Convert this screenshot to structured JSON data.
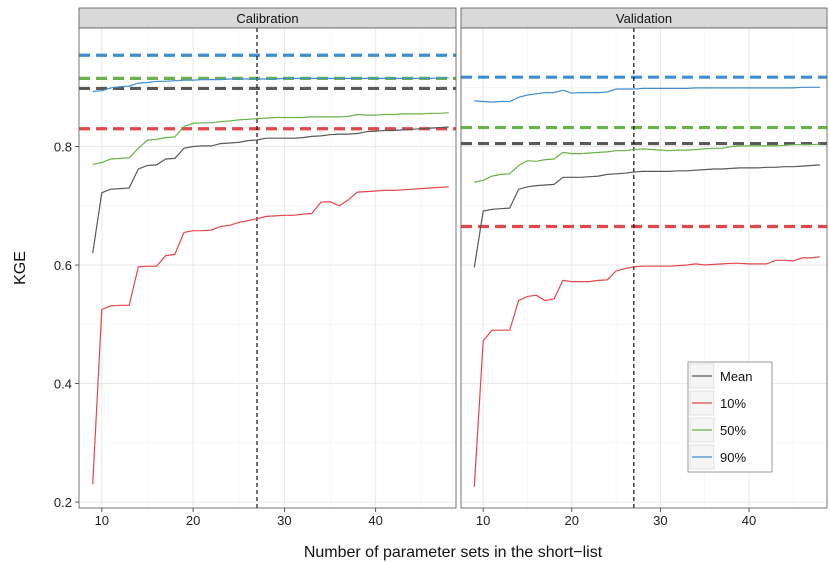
{
  "chart_data": {
    "type": "line",
    "xlabel": "Number of parameter sets in the short−list",
    "ylabel": "KGE",
    "xlim": [
      7.5,
      48.8
    ],
    "ylim": [
      0.19,
      1.0
    ],
    "x_ticks": [
      10,
      20,
      30,
      40
    ],
    "y_ticks": [
      0.2,
      0.4,
      0.6,
      0.8
    ],
    "y_tick_labels": [
      "0.2",
      "0.4",
      "0.6",
      "0.8"
    ],
    "grid": true,
    "legend_position": "bottom-right",
    "legend": [
      {
        "key": "mean",
        "label": "Mean",
        "color": "#595959"
      },
      {
        "key": "p10",
        "label": "10%",
        "color": "#e4474b"
      },
      {
        "key": "p50",
        "label": "50%",
        "color": "#6ab24a"
      },
      {
        "key": "p90",
        "label": "90%",
        "color": "#3f8ed0"
      }
    ],
    "vline_x": 27,
    "x": [
      9,
      10,
      11,
      12,
      13,
      14,
      15,
      16,
      17,
      18,
      19,
      20,
      21,
      22,
      23,
      24,
      25,
      26,
      27,
      28,
      29,
      30,
      31,
      32,
      33,
      34,
      35,
      36,
      37,
      38,
      39,
      40,
      41,
      42,
      43,
      44,
      45,
      46,
      47,
      48
    ],
    "panels": [
      {
        "title": "Calibration",
        "series": {
          "mean": [
            0.62,
            0.722,
            0.728,
            0.729,
            0.73,
            0.762,
            0.768,
            0.769,
            0.779,
            0.78,
            0.797,
            0.8,
            0.801,
            0.801,
            0.805,
            0.806,
            0.807,
            0.81,
            0.811,
            0.814,
            0.814,
            0.814,
            0.814,
            0.815,
            0.817,
            0.818,
            0.82,
            0.821,
            0.821,
            0.822,
            0.825,
            0.826,
            0.827,
            0.827,
            0.828,
            0.829,
            0.83,
            0.831,
            0.832,
            0.833
          ],
          "p10": [
            0.23,
            0.525,
            0.531,
            0.532,
            0.532,
            0.597,
            0.598,
            0.598,
            0.616,
            0.618,
            0.655,
            0.658,
            0.658,
            0.659,
            0.665,
            0.667,
            0.672,
            0.675,
            0.678,
            0.682,
            0.683,
            0.684,
            0.684,
            0.686,
            0.687,
            0.706,
            0.707,
            0.7,
            0.71,
            0.723,
            0.724,
            0.725,
            0.726,
            0.726,
            0.727,
            0.728,
            0.729,
            0.73,
            0.731,
            0.732
          ],
          "p50": [
            0.77,
            0.773,
            0.779,
            0.78,
            0.781,
            0.797,
            0.811,
            0.812,
            0.815,
            0.816,
            0.834,
            0.839,
            0.84,
            0.84,
            0.842,
            0.843,
            0.845,
            0.846,
            0.847,
            0.848,
            0.849,
            0.849,
            0.849,
            0.849,
            0.85,
            0.85,
            0.85,
            0.85,
            0.851,
            0.854,
            0.853,
            0.853,
            0.854,
            0.854,
            0.855,
            0.855,
            0.855,
            0.856,
            0.856,
            0.857
          ],
          "p90": [
            0.893,
            0.894,
            0.899,
            0.901,
            0.902,
            0.907,
            0.908,
            0.91,
            0.91,
            0.911,
            0.912,
            0.912,
            0.913,
            0.913,
            0.913,
            0.914,
            0.914,
            0.914,
            0.914,
            0.914,
            0.914,
            0.915,
            0.915,
            0.915,
            0.915,
            0.915,
            0.915,
            0.915,
            0.915,
            0.915,
            0.915,
            0.915,
            0.915,
            0.915,
            0.915,
            0.915,
            0.915,
            0.915,
            0.916,
            0.916
          ]
        },
        "hlines": {
          "mean": 0.898,
          "p10": 0.83,
          "p50": 0.915,
          "p90": 0.954
        }
      },
      {
        "title": "Validation",
        "series": {
          "mean": [
            0.596,
            0.691,
            0.694,
            0.695,
            0.696,
            0.728,
            0.732,
            0.734,
            0.735,
            0.736,
            0.748,
            0.748,
            0.748,
            0.749,
            0.75,
            0.753,
            0.754,
            0.755,
            0.757,
            0.758,
            0.758,
            0.758,
            0.758,
            0.759,
            0.759,
            0.76,
            0.761,
            0.762,
            0.762,
            0.763,
            0.764,
            0.764,
            0.764,
            0.765,
            0.765,
            0.766,
            0.766,
            0.767,
            0.768,
            0.769
          ],
          "p10": [
            0.226,
            0.472,
            0.49,
            0.49,
            0.49,
            0.54,
            0.547,
            0.549,
            0.54,
            0.543,
            0.574,
            0.572,
            0.572,
            0.572,
            0.574,
            0.575,
            0.59,
            0.594,
            0.597,
            0.598,
            0.598,
            0.598,
            0.598,
            0.599,
            0.6,
            0.602,
            0.6,
            0.601,
            0.602,
            0.603,
            0.603,
            0.602,
            0.602,
            0.602,
            0.608,
            0.608,
            0.607,
            0.612,
            0.612,
            0.614
          ],
          "p50": [
            0.74,
            0.743,
            0.75,
            0.753,
            0.754,
            0.768,
            0.776,
            0.775,
            0.778,
            0.779,
            0.79,
            0.788,
            0.788,
            0.789,
            0.79,
            0.791,
            0.793,
            0.793,
            0.795,
            0.796,
            0.795,
            0.794,
            0.793,
            0.794,
            0.794,
            0.795,
            0.796,
            0.797,
            0.797,
            0.8,
            0.801,
            0.801,
            0.801,
            0.801,
            0.801,
            0.802,
            0.803,
            0.803,
            0.803,
            0.804
          ],
          "p90": [
            0.877,
            0.876,
            0.875,
            0.876,
            0.876,
            0.883,
            0.887,
            0.889,
            0.891,
            0.891,
            0.895,
            0.89,
            0.891,
            0.891,
            0.891,
            0.892,
            0.897,
            0.897,
            0.897,
            0.898,
            0.898,
            0.898,
            0.898,
            0.898,
            0.898,
            0.899,
            0.899,
            0.899,
            0.899,
            0.899,
            0.899,
            0.899,
            0.899,
            0.899,
            0.899,
            0.899,
            0.899,
            0.9,
            0.9,
            0.9
          ]
        },
        "hlines": {
          "mean": 0.805,
          "p10": 0.665,
          "p50": 0.832,
          "p90": 0.917
        }
      }
    ]
  }
}
